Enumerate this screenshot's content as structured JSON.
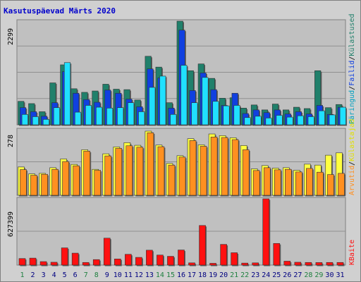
{
  "title": "Kasutuspäevad Märts 2020",
  "colors": {
    "background": "#d0d0d0",
    "panel": "#c0c0c0",
    "title": "#0000cc",
    "weekday_label": "#000080",
    "weekend_label": "#208040",
    "kulastused": "#20806b",
    "failid": "#1040e0",
    "paringud": "#20e0ff",
    "kulastajad": "#ffff40",
    "arvutid": "#ff9020",
    "baidid": "#ff1010"
  },
  "legend": {
    "top_sep1": "/",
    "top_sep2": "/",
    "mid_sep": "/"
  },
  "chart_data": [
    {
      "type": "bar",
      "panel": "top",
      "ymax_label": "2299",
      "categories": [
        "1",
        "2",
        "3",
        "4",
        "5",
        "6",
        "7",
        "8",
        "9",
        "10",
        "11",
        "12",
        "13",
        "14",
        "15",
        "16",
        "17",
        "18",
        "19",
        "20",
        "21",
        "22",
        "23",
        "24",
        "25",
        "26",
        "27",
        "28",
        "29",
        "30",
        "31"
      ],
      "weekend_days": [
        1,
        7,
        8,
        14,
        15,
        21,
        22,
        28,
        29
      ],
      "series": [
        {
          "name": "Külastused",
          "values": [
            520,
            470,
            290,
            930,
            1330,
            800,
            720,
            750,
            900,
            790,
            780,
            550,
            1520,
            1280,
            490,
            2299,
            1200,
            1350,
            1030,
            590,
            600,
            370,
            440,
            330,
            460,
            330,
            390,
            360,
            1200,
            380,
            450
          ]
        },
        {
          "name": "Failid",
          "values": [
            380,
            290,
            190,
            490,
            1180,
            700,
            560,
            500,
            770,
            700,
            570,
            400,
            1240,
            1040,
            370,
            2100,
            760,
            1150,
            780,
            430,
            700,
            250,
            330,
            270,
            330,
            240,
            290,
            240,
            430,
            230,
            390
          ]
        },
        {
          "name": "Päringud",
          "values": [
            230,
            180,
            120,
            380,
            1380,
            280,
            430,
            390,
            370,
            380,
            490,
            290,
            830,
            1080,
            230,
            1320,
            490,
            1050,
            520,
            420,
            430,
            160,
            190,
            150,
            210,
            170,
            200,
            180,
            310,
            220,
            390
          ]
        }
      ]
    },
    {
      "type": "bar",
      "panel": "middle",
      "ymax_label": "278",
      "categories": [
        "1",
        "2",
        "3",
        "4",
        "5",
        "6",
        "7",
        "8",
        "9",
        "10",
        "11",
        "12",
        "13",
        "14",
        "15",
        "16",
        "17",
        "18",
        "19",
        "20",
        "21",
        "22",
        "23",
        "24",
        "25",
        "26",
        "27",
        "28",
        "29",
        "30",
        "31"
      ],
      "series": [
        {
          "name": "Külastajad",
          "values": [
            120,
            91,
            93,
            117,
            154,
            131,
            193,
            110,
            176,
            205,
            223,
            212,
            272,
            213,
            135,
            168,
            240,
            214,
            260,
            253,
            244,
            211,
            112,
            126,
            115,
            117,
            106,
            132,
            128,
            170,
            180
          ]
        },
        {
          "name": "Arvutid",
          "values": [
            109,
            85,
            89,
            110,
            143,
            125,
            187,
            106,
            167,
            199,
            210,
            204,
            265,
            206,
            128,
            162,
            232,
            208,
            247,
            245,
            236,
            193,
            105,
            117,
            108,
            110,
            99,
            114,
            98,
            88,
            93
          ]
        }
      ]
    },
    {
      "type": "bar",
      "panel": "bottom",
      "ymax_label": "627399",
      "categories": [
        "1",
        "2",
        "3",
        "4",
        "5",
        "6",
        "7",
        "8",
        "9",
        "10",
        "11",
        "12",
        "13",
        "14",
        "15",
        "16",
        "17",
        "18",
        "19",
        "20",
        "21",
        "22",
        "23",
        "24",
        "25",
        "26",
        "27",
        "28",
        "29",
        "30",
        "31"
      ],
      "series": [
        {
          "name": "KBaite",
          "values": [
            62000,
            66000,
            33000,
            27000,
            163000,
            113000,
            25000,
            52000,
            255000,
            58000,
            102000,
            73000,
            141000,
            95000,
            83000,
            143000,
            21000,
            375000,
            17000,
            196000,
            117000,
            19000,
            21000,
            627399,
            205000,
            37000,
            27000,
            25000,
            24000,
            25000,
            25000
          ]
        }
      ]
    }
  ]
}
